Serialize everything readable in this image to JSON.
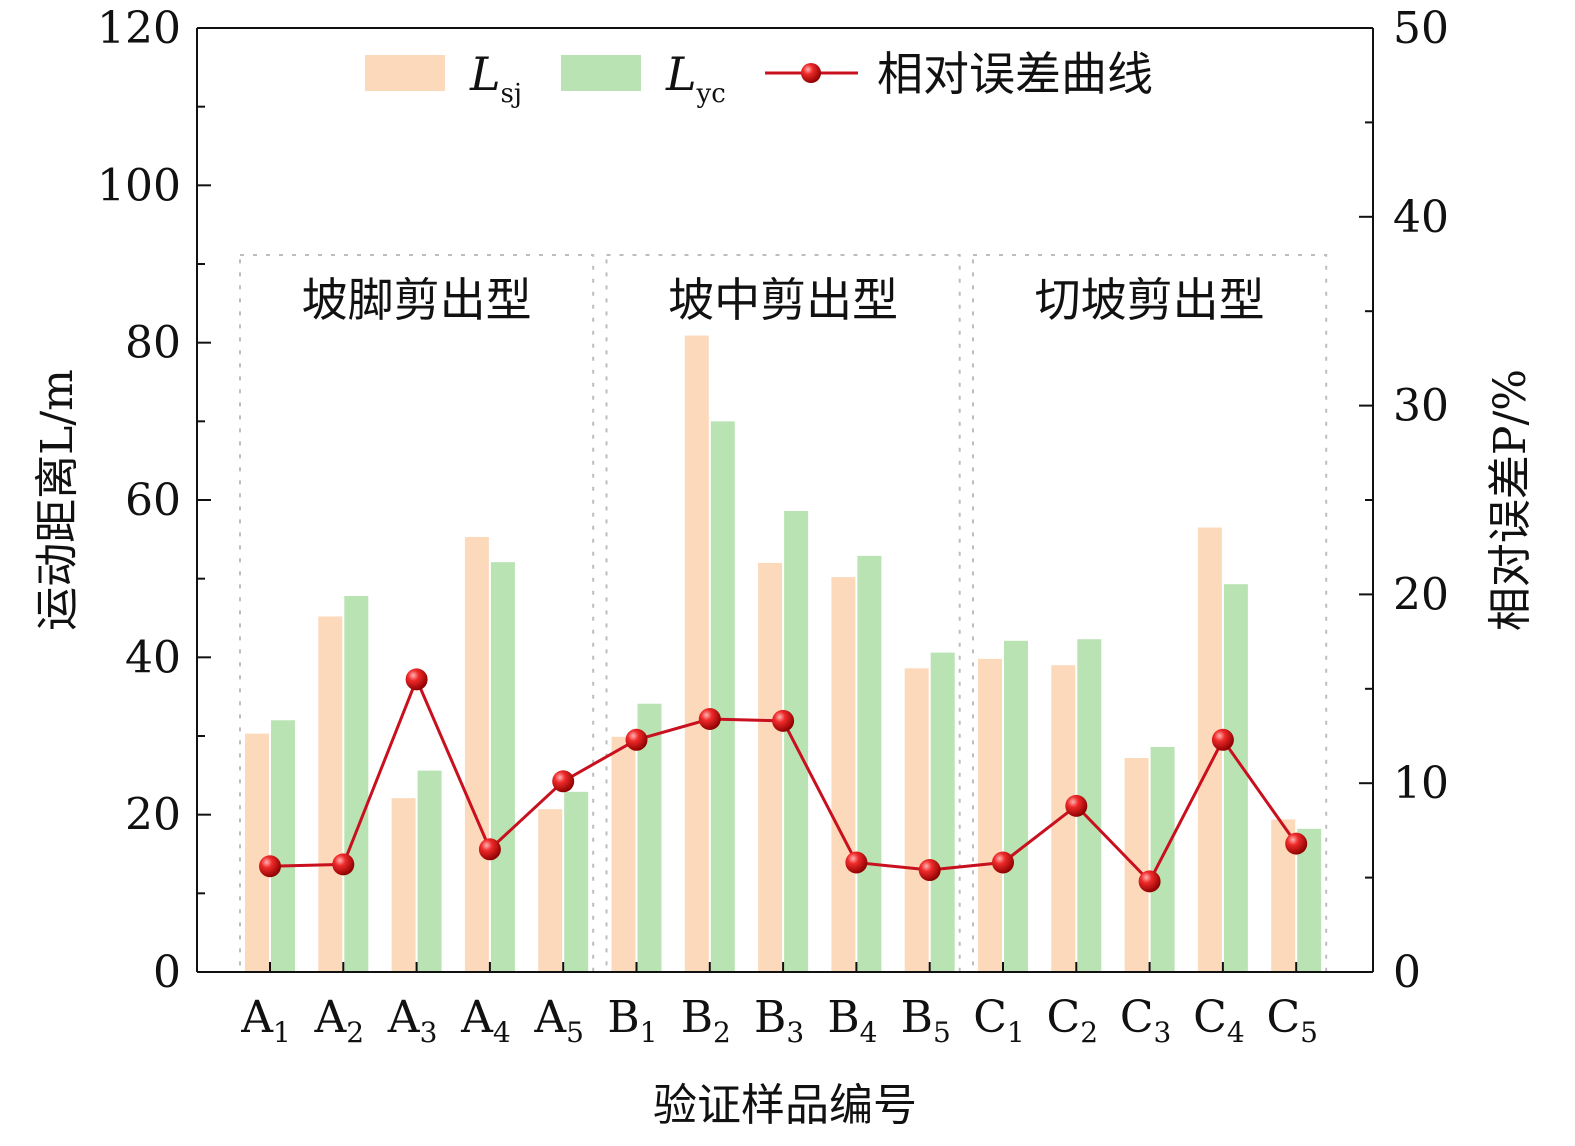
{
  "chart_data": {
    "type": "bar",
    "xlabel": "验证样品编号",
    "ylabel": "运动距离L/m",
    "y2label": "相对误差P/%",
    "ylim": [
      0,
      120
    ],
    "y2lim": [
      0,
      50
    ],
    "yticks": [
      "0",
      "20",
      "40",
      "60",
      "80",
      "100",
      "120"
    ],
    "y2ticks": [
      "0",
      "10",
      "20",
      "30",
      "40",
      "50"
    ],
    "categories": [
      {
        "base": "A",
        "sub": "1"
      },
      {
        "base": "A",
        "sub": "2"
      },
      {
        "base": "A",
        "sub": "3"
      },
      {
        "base": "A",
        "sub": "4"
      },
      {
        "base": "A",
        "sub": "5"
      },
      {
        "base": "B",
        "sub": "1"
      },
      {
        "base": "B",
        "sub": "2"
      },
      {
        "base": "B",
        "sub": "3"
      },
      {
        "base": "B",
        "sub": "4"
      },
      {
        "base": "B",
        "sub": "5"
      },
      {
        "base": "C",
        "sub": "1"
      },
      {
        "base": "C",
        "sub": "2"
      },
      {
        "base": "C",
        "sub": "3"
      },
      {
        "base": "C",
        "sub": "4"
      },
      {
        "base": "C",
        "sub": "5"
      }
    ],
    "series": [
      {
        "name": "L",
        "sub": "sj",
        "kind": "bar",
        "axis": "left",
        "color": "#fdd9bb",
        "values": [
          30.3,
          45.2,
          22.1,
          55.3,
          20.7,
          29.9,
          80.9,
          52.0,
          50.2,
          38.6,
          39.8,
          39.0,
          27.2,
          56.5,
          19.4
        ]
      },
      {
        "name": "L",
        "sub": "yc",
        "kind": "bar",
        "axis": "left",
        "color": "#b9e3b3",
        "values": [
          32.0,
          47.8,
          25.6,
          52.1,
          22.9,
          34.1,
          70.0,
          58.6,
          52.9,
          40.6,
          42.1,
          42.3,
          28.6,
          49.3,
          18.2
        ]
      },
      {
        "name": "相对误差曲线",
        "kind": "line",
        "axis": "right",
        "color": "#c8101e",
        "values": [
          5.6,
          5.7,
          15.5,
          6.5,
          10.1,
          12.3,
          13.4,
          13.3,
          5.8,
          5.4,
          5.8,
          8.8,
          4.8,
          12.3,
          6.8
        ]
      }
    ],
    "groups": [
      {
        "label": "坡脚剪出型",
        "from": 0,
        "to": 4
      },
      {
        "label": "坡中剪出型",
        "from": 5,
        "to": 9
      },
      {
        "label": "切坡剪出型",
        "from": 10,
        "to": 14
      }
    ],
    "legend_position": "top-center"
  }
}
